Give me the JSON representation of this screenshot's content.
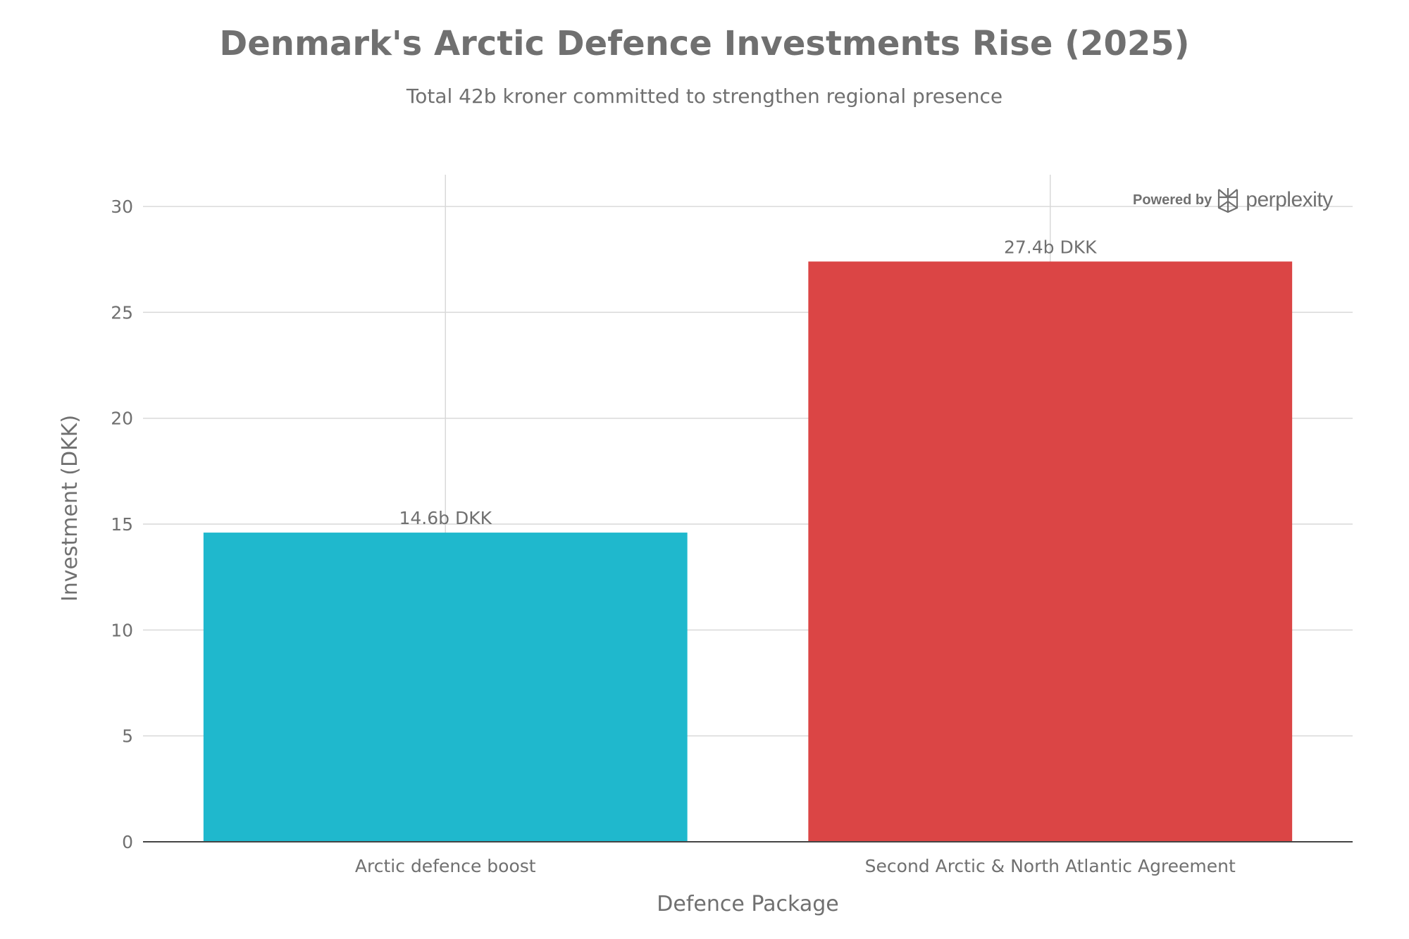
{
  "chart_data": {
    "type": "bar",
    "title": "Denmark's Arctic Defence Investments Rise (2025)",
    "subtitle": "Total 42b kroner committed to strengthen regional presence",
    "xlabel": "Defence Package",
    "ylabel": "Investment (DKK)",
    "categories": [
      "Arctic defence boost",
      "Second Arctic & North Atlantic Agreement"
    ],
    "values": [
      14.6,
      27.4
    ],
    "data_labels": [
      "14.6b DKK",
      "27.4b DKK"
    ],
    "colors": [
      "#1FB8CD",
      "#DB4545"
    ],
    "ylim": [
      0,
      31.5
    ],
    "yticks": [
      0,
      5,
      10,
      15,
      20,
      25,
      30
    ],
    "grid": true,
    "legend": "none"
  },
  "watermark": {
    "prefix": "Powered by",
    "brand": "perplexity",
    "icon": "perplexity-logo-icon"
  }
}
